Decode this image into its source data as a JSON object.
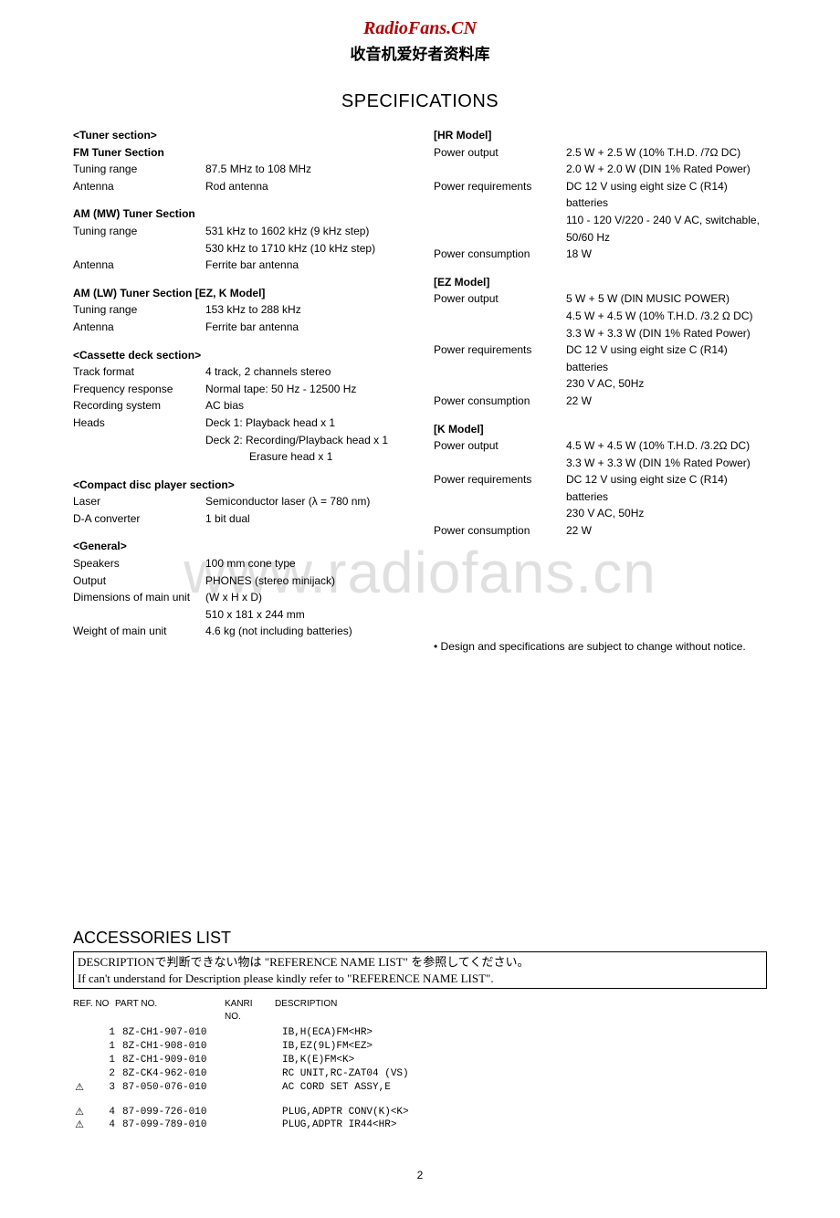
{
  "header": {
    "site_title": "RadioFans.CN",
    "site_subtitle": "收音机爱好者资料库"
  },
  "spec_heading": "SPECIFICATIONS",
  "left": {
    "tuner_section": "<Tuner section>",
    "fm_title": "FM Tuner Section",
    "fm_range_label": "Tuning range",
    "fm_range_value": "87.5 MHz to 108 MHz",
    "fm_ant_label": "Antenna",
    "fm_ant_value": "Rod antenna",
    "am_mw_title": "AM (MW) Tuner Section",
    "am_mw_range_label": "Tuning range",
    "am_mw_range_value1": "531 kHz to 1602 kHz (9 kHz step)",
    "am_mw_range_value2": "530 kHz to 1710 kHz (10 kHz step)",
    "am_mw_ant_label": "Antenna",
    "am_mw_ant_value": "Ferrite bar antenna",
    "am_lw_title": "AM (LW) Tuner Section [EZ, K Model]",
    "am_lw_range_label": "Tuning range",
    "am_lw_range_value": "153 kHz to 288 kHz",
    "am_lw_ant_label": "Antenna",
    "am_lw_ant_value": "Ferrite bar antenna",
    "cassette_title": "<Cassette deck section>",
    "track_label": "Track format",
    "track_value": "4 track, 2 channels stereo",
    "freq_label": "Frequency response",
    "freq_value": "Normal tape: 50 Hz - 12500 Hz",
    "rec_label": "Recording system",
    "rec_value": "AC bias",
    "heads_label": "Heads",
    "heads_value1": "Deck 1: Playback head x 1",
    "heads_value2": "Deck 2: Recording/Playback head x 1",
    "heads_value3": "Erasure head x 1",
    "cd_title": "<Compact disc player section>",
    "laser_label": "Laser",
    "laser_value": "Semiconductor laser (λ = 780 nm)",
    "dac_label": "D-A converter",
    "dac_value": "1 bit dual",
    "general_title": "<General>",
    "speakers_label": "Speakers",
    "speakers_value": "100 mm cone type",
    "output_label": "Output",
    "output_value": "PHONES (stereo minijack)",
    "dim_label": "Dimensions of main unit",
    "dim_value1": "(W x H x D)",
    "dim_value2": "510 x 181 x 244 mm",
    "weight_label": "Weight of main unit",
    "weight_value": "4.6 kg  (not including batteries)"
  },
  "right": {
    "hr_title": "[HR Model]",
    "hr_po_label": "Power output",
    "hr_po_value1": "2.5 W + 2.5 W (10% T.H.D. /7Ω DC)",
    "hr_po_value2": "2.0 W + 2.0 W (DIN 1% Rated Power)",
    "hr_pr_label": "Power requirements",
    "hr_pr_value1": "DC 12 V using eight size C (R14) batteries",
    "hr_pr_value2": "110 - 120 V/220 - 240 V AC, switchable, 50/60 Hz",
    "hr_pc_label": "Power consumption",
    "hr_pc_value": "18 W",
    "ez_title": "[EZ Model]",
    "ez_po_label": "Power output",
    "ez_po_value1": "5 W + 5 W (DIN MUSIC POWER)",
    "ez_po_value2": "4.5 W + 4.5 W (10% T.H.D. /3.2 Ω DC)",
    "ez_po_value3": "3.3 W + 3.3 W (DIN 1% Rated Power)",
    "ez_pr_label": "Power requirements",
    "ez_pr_value1": "DC 12 V using eight size C (R14) batteries",
    "ez_pr_value2": "230 V AC, 50Hz",
    "ez_pc_label": "Power consumption",
    "ez_pc_value": "22 W",
    "k_title": "[K Model]",
    "k_po_label": "Power output",
    "k_po_value1": "4.5 W + 4.5 W (10% T.H.D. /3.2Ω DC)",
    "k_po_value2": "3.3 W + 3.3 W (DIN 1% Rated Power)",
    "k_pr_label": "Power requirements",
    "k_pr_value1": "DC 12 V using eight size C (R14) batteries",
    "k_pr_value2": "230 V AC, 50Hz",
    "k_pc_label": "Power consumption",
    "k_pc_value": "22 W",
    "note": "• Design and specifications are subject to change without notice."
  },
  "watermark": "www.radiofans.cn",
  "accessories": {
    "heading": "ACCESSORIES LIST",
    "box_line1": "DESCRIPTIONで判断できない物は \"REFERENCE NAME LIST\" を参照してください。",
    "box_line2": "If can't understand for Description please kindly refer to \"REFERENCE NAME LIST\".",
    "cols": {
      "c1": "REF. NO",
      "c2": "PART NO.",
      "c3a": "KANRI",
      "c3b": "NO.",
      "c4": "DESCRIPTION"
    },
    "rows": [
      {
        "sym": "",
        "ref": "1",
        "part": "8Z-CH1-907-010",
        "kanri": "",
        "desc": "IB,H(ECA)FM<HR>"
      },
      {
        "sym": "",
        "ref": "1",
        "part": "8Z-CH1-908-010",
        "kanri": "",
        "desc": "IB,EZ(9L)FM<EZ>"
      },
      {
        "sym": "",
        "ref": "1",
        "part": "8Z-CH1-909-010",
        "kanri": "",
        "desc": "IB,K(E)FM<K>"
      },
      {
        "sym": "",
        "ref": "2",
        "part": "8Z-CK4-962-010",
        "kanri": "",
        "desc": "RC UNIT,RC-ZAT04 (VS)"
      },
      {
        "sym": "⚠",
        "ref": "3",
        "part": "87-050-076-010",
        "kanri": "",
        "desc": "AC CORD SET ASSY,E"
      }
    ],
    "rows2": [
      {
        "sym": "⚠",
        "ref": "4",
        "part": "87-099-726-010",
        "kanri": "",
        "desc": "PLUG,ADPTR CONV(K)<K>"
      },
      {
        "sym": "⚠",
        "ref": "4",
        "part": "87-099-789-010",
        "kanri": "",
        "desc": "PLUG,ADPTR IR44<HR>"
      }
    ]
  },
  "page_number": "2"
}
